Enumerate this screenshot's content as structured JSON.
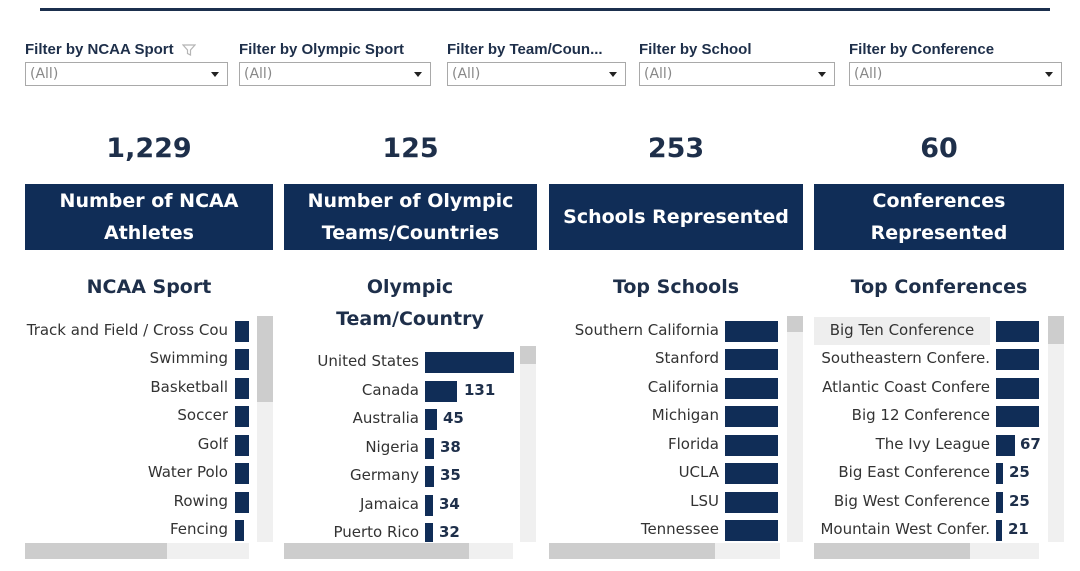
{
  "filters": [
    {
      "label": "Filter by NCAA Sport",
      "value": "(All)",
      "has_filter_icon": true
    },
    {
      "label": "Filter by Olympic Sport",
      "value": "(All)"
    },
    {
      "label": "Filter by Team/Coun...",
      "value": "(All)"
    },
    {
      "label": "Filter by School",
      "value": "(All)"
    },
    {
      "label": "Filter by Conference",
      "value": "(All)"
    }
  ],
  "kpis": [
    {
      "value": "1,229",
      "label": "Number of NCAA Athletes"
    },
    {
      "value": "125",
      "label": "Number of Olympic Teams/Countries"
    },
    {
      "value": "253",
      "label": "Schools Represented"
    },
    {
      "value": "60",
      "label": "Conferences Represented"
    }
  ],
  "panels": {
    "ncaa_sport": {
      "title": "NCAA Sport",
      "rows": [
        {
          "label": "Track and Field / Cross Cou"
        },
        {
          "label": "Swimming"
        },
        {
          "label": "Basketball"
        },
        {
          "label": "Soccer"
        },
        {
          "label": "Golf"
        },
        {
          "label": "Water Polo"
        },
        {
          "label": "Rowing"
        },
        {
          "label": "Fencing"
        }
      ]
    },
    "olympic_team": {
      "title": "Olympic Team/Country",
      "rows": [
        {
          "label": "United States",
          "value": ""
        },
        {
          "label": "Canada",
          "value": "131"
        },
        {
          "label": "Australia",
          "value": "45"
        },
        {
          "label": "Nigeria",
          "value": "38"
        },
        {
          "label": "Germany",
          "value": "35"
        },
        {
          "label": "Jamaica",
          "value": "34"
        },
        {
          "label": "Puerto Rico",
          "value": "32"
        }
      ]
    },
    "top_schools": {
      "title": "Top Schools",
      "rows": [
        {
          "label": "Southern California"
        },
        {
          "label": "Stanford"
        },
        {
          "label": "California"
        },
        {
          "label": "Michigan"
        },
        {
          "label": "Florida"
        },
        {
          "label": "UCLA"
        },
        {
          "label": "LSU"
        },
        {
          "label": "Tennessee"
        }
      ]
    },
    "top_conferences": {
      "title": "Top Conferences",
      "rows": [
        {
          "label": "Big Ten Conference",
          "value": ""
        },
        {
          "label": "Southeastern Confere.",
          "value": ""
        },
        {
          "label": "Atlantic Coast Confere",
          "value": ""
        },
        {
          "label": "Big 12 Conference",
          "value": ""
        },
        {
          "label": "The Ivy League",
          "value": "67"
        },
        {
          "label": "Big East Conference",
          "value": "25"
        },
        {
          "label": "Big West Conference",
          "value": "25"
        },
        {
          "label": "Mountain West Confer.",
          "value": "21"
        }
      ]
    }
  },
  "colors": {
    "bar": "#102d57",
    "header_bg": "#102d57",
    "header_text": "#ffffff",
    "text": "#1e2f4a"
  }
}
